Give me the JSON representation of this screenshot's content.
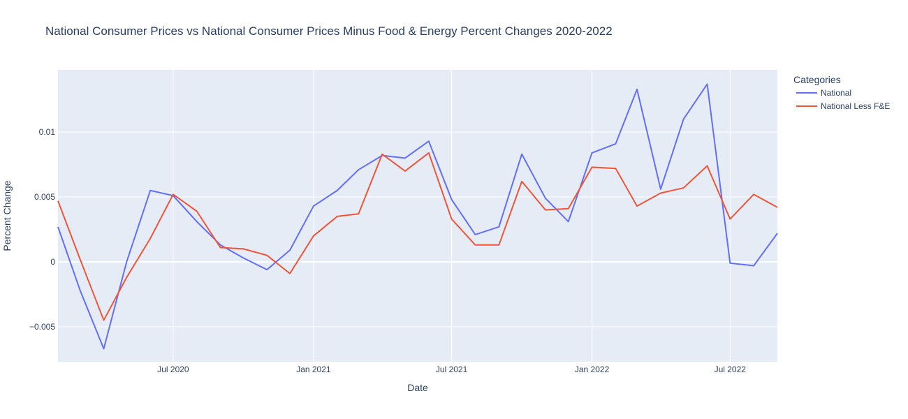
{
  "chart_data": {
    "type": "line",
    "title": "National Consumer Prices vs National Consumer Prices Minus Food & Energy Percent Changes 2020-2022",
    "xlabel": "Date",
    "ylabel": "Percent Change",
    "legend_title": "Categories",
    "legend_position": "top-right",
    "grid": true,
    "xlim": [
      "2020-02-01",
      "2022-09-01"
    ],
    "ylim": [
      -0.0077,
      0.0148
    ],
    "x_ticks": [
      {
        "value": "2020-07-01",
        "label": "Jul 2020"
      },
      {
        "value": "2021-01-01",
        "label": "Jan 2021"
      },
      {
        "value": "2021-07-01",
        "label": "Jul 2021"
      },
      {
        "value": "2022-01-01",
        "label": "Jan 2022"
      },
      {
        "value": "2022-07-01",
        "label": "Jul 2022"
      }
    ],
    "y_ticks": [
      {
        "value": -0.005,
        "label": "−0.005"
      },
      {
        "value": 0,
        "label": "0"
      },
      {
        "value": 0.005,
        "label": "0.005"
      },
      {
        "value": 0.01,
        "label": "0.01"
      }
    ],
    "x": [
      "2020-02-01",
      "2020-03-01",
      "2020-04-01",
      "2020-05-01",
      "2020-06-01",
      "2020-07-01",
      "2020-08-01",
      "2020-09-01",
      "2020-10-01",
      "2020-11-01",
      "2020-12-01",
      "2021-01-01",
      "2021-02-01",
      "2021-03-01",
      "2021-04-01",
      "2021-05-01",
      "2021-06-01",
      "2021-07-01",
      "2021-08-01",
      "2021-09-01",
      "2021-10-01",
      "2021-11-01",
      "2021-12-01",
      "2022-01-01",
      "2022-02-01",
      "2022-03-01",
      "2022-04-01",
      "2022-05-01",
      "2022-06-01",
      "2022-07-01",
      "2022-08-01",
      "2022-09-01"
    ],
    "series": [
      {
        "name": "National",
        "color": "#636efa",
        "values": [
          0.0027,
          -0.0022,
          -0.0067,
          0.0,
          0.0055,
          0.0051,
          0.0031,
          0.0013,
          0.0003,
          -0.0006,
          0.0009,
          0.0043,
          0.0055,
          0.0071,
          0.0082,
          0.008,
          0.0093,
          0.0048,
          0.0021,
          0.0027,
          0.0083,
          0.0049,
          0.0031,
          0.0084,
          0.0091,
          0.0133,
          0.0056,
          0.011,
          0.0137,
          -0.0001,
          -0.0003,
          0.0022
        ]
      },
      {
        "name": "National Less F&E",
        "color": "#ef553b",
        "values": [
          0.0047,
          0.0002,
          -0.0045,
          -0.0012,
          0.0018,
          0.0052,
          0.0039,
          0.0011,
          0.001,
          0.0005,
          -0.0009,
          0.002,
          0.0035,
          0.0037,
          0.0083,
          0.007,
          0.0084,
          0.0033,
          0.0013,
          0.0013,
          0.0062,
          0.004,
          0.0041,
          0.0073,
          0.0072,
          0.0043,
          0.0053,
          0.0057,
          0.0074,
          0.0033,
          0.0052,
          0.0042
        ]
      }
    ]
  }
}
